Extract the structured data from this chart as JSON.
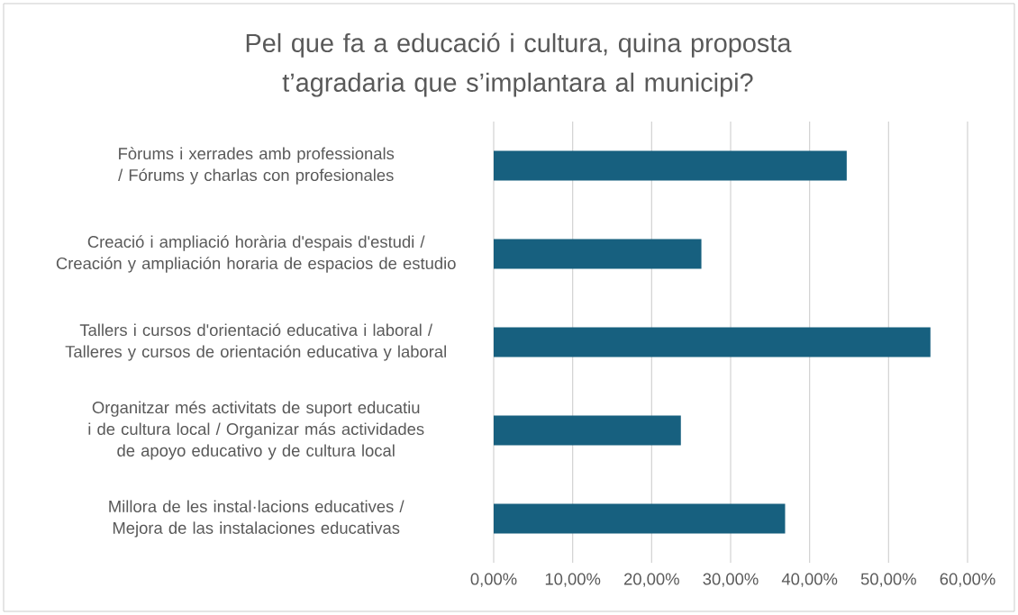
{
  "chart_data": {
    "type": "bar",
    "orientation": "horizontal",
    "title": "Pel que fa a educació i cultura, quina proposta t’agradaria que s’implantara al municipi?",
    "categories": [
      "Fòrums i xerrades amb professionals / Fórums y charlas con profesionales",
      "Creació i ampliació horària d'espais d'estudi / Creación y ampliación horaria de espacios de estudio",
      "Tallers i cursos d'orientació educativa i laboral / Talleres y cursos de orientación educativa y laboral",
      "Organitzar més activitats de suport educatiu i de cultura local / Organizar más actividades de apoyo educativo y de cultura local",
      "Millora de les instal·lacions educatives / Mejora de las instalaciones educativas"
    ],
    "values": [
      44.7,
      26.3,
      55.3,
      23.7,
      36.9
    ],
    "color": "#17607f",
    "xlim": [
      0,
      60
    ],
    "xticks": [
      {
        "value": 0,
        "label": "0,00%"
      },
      {
        "value": 10,
        "label": "10,00%"
      },
      {
        "value": 20,
        "label": "20,00%"
      },
      {
        "value": 30,
        "label": "30,00%"
      },
      {
        "value": 40,
        "label": "40,00%"
      },
      {
        "value": 50,
        "label": "50,00%"
      },
      {
        "value": 60,
        "label": "60,00%"
      }
    ],
    "grid": "x"
  }
}
